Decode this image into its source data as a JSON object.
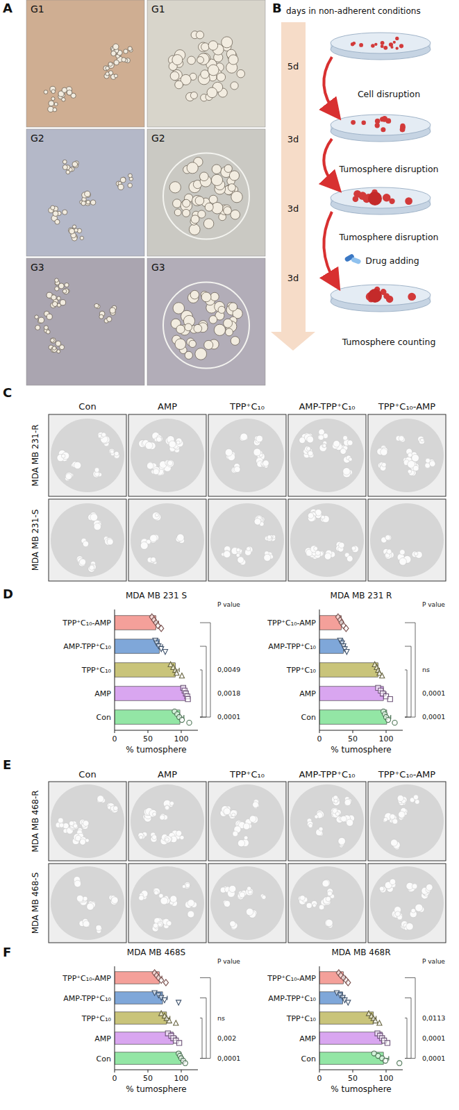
{
  "panel_a": {
    "letter": "A",
    "labels": [
      "G1",
      "G1",
      "G2",
      "G2",
      "G3",
      "G3"
    ]
  },
  "panel_b": {
    "letter": "B",
    "header": "days in non-adherent conditions",
    "days": [
      "5d",
      "3d",
      "3d",
      "3d"
    ],
    "steps": [
      "Cell disruption",
      "Tumosphere disruption",
      "Tumosphere disruption",
      "Drug adding",
      "Tumosphere counting"
    ]
  },
  "panel_c": {
    "letter": "C",
    "columns": [
      "Con",
      "AMP",
      "TPP⁺C₁₀",
      "AMP-TPP⁺C₁₀",
      "TPP⁺C₁₀-AMP"
    ],
    "rows": [
      "MDA MB 231-R",
      "MDA MB 231-S"
    ]
  },
  "panel_d": {
    "letter": "D"
  },
  "panel_e": {
    "letter": "E",
    "columns": [
      "Con",
      "AMP",
      "TPP⁺C₁₀",
      "AMP-TPP⁺C₁₀",
      "TPP⁺C₁₀-AMP"
    ],
    "rows": [
      "MDA MB 468-R",
      "MDA MB 468-S"
    ]
  },
  "panel_f": {
    "letter": "F"
  },
  "chart_data": [
    {
      "type": "bar",
      "orientation": "horizontal",
      "title": "MDA MB 231 S",
      "x_label": "% tumosphere",
      "categories": [
        "TPP⁺C₁₀-AMP",
        "AMP-TPP⁺C₁₀",
        "TPP⁺C₁₀",
        "AMP",
        "Con"
      ],
      "values": [
        62,
        67,
        91,
        107,
        98
      ],
      "errors": [
        4,
        5,
        6,
        2,
        6
      ],
      "points": [
        [
          56,
          59,
          62,
          65,
          70
        ],
        [
          61,
          63,
          66,
          70,
          76
        ],
        [
          84,
          88,
          91,
          93,
          101
        ],
        [
          103,
          105,
          107,
          109,
          110
        ],
        [
          90,
          94,
          97,
          101,
          112
        ]
      ],
      "colors": [
        "#f4a09a",
        "#7fa7d9",
        "#c9c47a",
        "#d9a6f0",
        "#93e6a5"
      ],
      "xlim": [
        0,
        125
      ],
      "xticks": [
        0,
        50,
        100
      ],
      "p_label": "P value",
      "p_values": [
        "0,0049",
        "0,0018",
        "0,0001"
      ]
    },
    {
      "type": "bar",
      "orientation": "horizontal",
      "title": "MDA MB 231 R",
      "x_label": "% tumosphere",
      "categories": [
        "TPP⁺C₁₀-AMP",
        "AMP-TPP⁺C₁₀",
        "TPP⁺C₁₀",
        "AMP",
        "Con"
      ],
      "values": [
        33,
        36,
        88,
        96,
        101
      ],
      "errors": [
        3,
        3,
        2,
        4,
        6
      ],
      "points": [
        [
          28,
          31,
          33,
          36,
          40
        ],
        [
          31,
          34,
          36,
          38,
          41
        ],
        [
          83,
          86,
          88,
          90,
          94
        ],
        [
          88,
          92,
          95,
          100,
          106
        ],
        [
          96,
          98,
          100,
          103,
          113
        ]
      ],
      "colors": [
        "#f4a09a",
        "#7fa7d9",
        "#c9c47a",
        "#d9a6f0",
        "#93e6a5"
      ],
      "xlim": [
        0,
        125
      ],
      "xticks": [
        0,
        50,
        100
      ],
      "p_label": "P value",
      "p_values": [
        "ns",
        "0,0001",
        "0,0001"
      ]
    },
    {
      "type": "bar",
      "orientation": "horizontal",
      "title": "MDA MB 468S",
      "x_label": "% tumosphere",
      "categories": [
        "TPP⁺C₁₀-AMP",
        "AMP-TPP⁺C₁₀",
        "TPP⁺C₁₀",
        "AMP",
        "Con"
      ],
      "values": [
        67,
        72,
        78,
        88,
        100
      ],
      "errors": [
        4,
        7,
        5,
        5,
        2
      ],
      "points": [
        [
          60,
          63,
          66,
          70,
          77
        ],
        [
          60,
          66,
          70,
          75,
          96
        ],
        [
          70,
          75,
          78,
          82,
          92
        ],
        [
          80,
          85,
          88,
          92,
          97
        ],
        [
          96,
          98,
          100,
          103,
          106
        ]
      ],
      "colors": [
        "#f4a09a",
        "#7fa7d9",
        "#c9c47a",
        "#d9a6f0",
        "#93e6a5"
      ],
      "xlim": [
        0,
        125
      ],
      "xticks": [
        0,
        50,
        100
      ],
      "p_label": "P value",
      "p_values": [
        "ns",
        "0,002",
        "0,0001"
      ]
    },
    {
      "type": "bar",
      "orientation": "horizontal",
      "title": "MDA MB 468R",
      "x_label": "% tumosphere",
      "categories": [
        "TPP⁺C₁₀-AMP",
        "AMP-TPP⁺C₁₀",
        "TPP⁺C₁₀",
        "AMP",
        "Con"
      ],
      "values": [
        36,
        35,
        81,
        94,
        96
      ],
      "errors": [
        3,
        3,
        4,
        3,
        8
      ],
      "points": [
        [
          29,
          32,
          36,
          40,
          43
        ],
        [
          26,
          31,
          35,
          38,
          43
        ],
        [
          74,
          78,
          81,
          84,
          90
        ],
        [
          87,
          91,
          94,
          97,
          102
        ],
        [
          82,
          88,
          94,
          99,
          120
        ]
      ],
      "colors": [
        "#f4a09a",
        "#7fa7d9",
        "#c9c47a",
        "#d9a6f0",
        "#93e6a5"
      ],
      "xlim": [
        0,
        125
      ],
      "xticks": [
        0,
        50,
        100
      ],
      "p_label": "P value",
      "p_values": [
        "0,0113",
        "0,0001",
        "0,0001"
      ]
    }
  ]
}
